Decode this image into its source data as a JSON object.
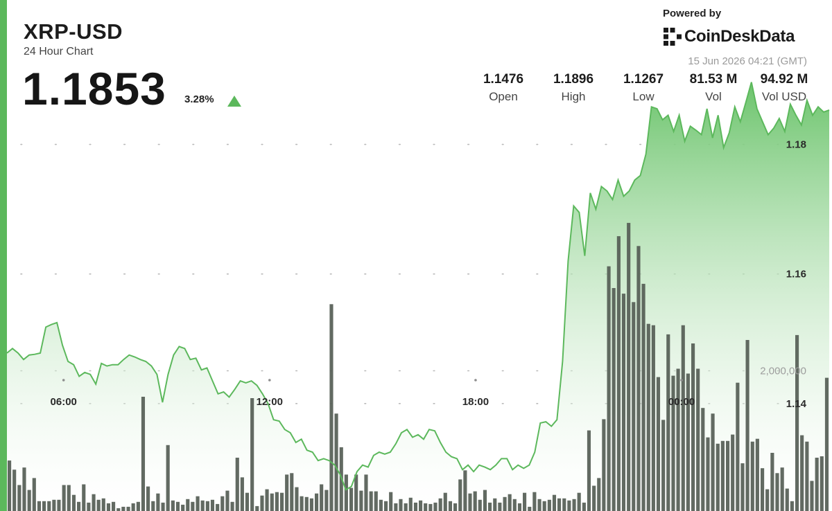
{
  "header": {
    "title": "XRP-USD",
    "subtitle": "24 Hour Chart",
    "price": "1.1853",
    "change_pct": "3.28%",
    "change_direction": "up"
  },
  "branding": {
    "powered_by": "Powered by",
    "logo_text": "CoinDeskData",
    "timestamp": "15 Jun 2026 04:21 (GMT)",
    "logo_icon": "coindesk-mark-icon"
  },
  "stats": [
    {
      "value": "1.1476",
      "label": "Open"
    },
    {
      "value": "1.1896",
      "label": "High"
    },
    {
      "value": "1.1267",
      "label": "Low"
    },
    {
      "value": "81.53 M",
      "label": "Vol"
    },
    {
      "value": "94.92 M",
      "label": "Vol USD"
    }
  ],
  "colors": {
    "accent": "#5cb85c",
    "line": "#5cb85c",
    "area_top": "#6cc46c",
    "volume_bars": "#555d55"
  },
  "chart_data": {
    "type": "area",
    "x_tick_labels": [
      "06:00",
      "12:00",
      "18:00",
      "00:00"
    ],
    "x_tick_hours": [
      6,
      12,
      18,
      24
    ],
    "x_range_hours": [
      4.35,
      28.3
    ],
    "price_axis": {
      "ticks": [
        1.14,
        1.16,
        1.18
      ],
      "labels": [
        "1.14",
        "1.16",
        "1.18"
      ],
      "range": [
        1.12,
        1.1916
      ]
    },
    "volume_axis": {
      "ticks": [
        2000000
      ],
      "labels": [
        "2,000,000"
      ],
      "range": [
        0,
        4000000
      ]
    },
    "grid": "dotted-horizontal",
    "price": [
      1.1478,
      1.1485,
      1.1478,
      1.1468,
      1.1475,
      1.1476,
      1.1478,
      1.1518,
      1.1522,
      1.1525,
      1.149,
      1.1465,
      1.146,
      1.1442,
      1.1448,
      1.1445,
      1.143,
      1.1462,
      1.1458,
      1.146,
      1.146,
      1.1468,
      1.1475,
      1.1472,
      1.1468,
      1.1465,
      1.1458,
      1.1445,
      1.1402,
      1.1445,
      1.1475,
      1.1488,
      1.1485,
      1.1468,
      1.147,
      1.1452,
      1.1455,
      1.1435,
      1.1415,
      1.1418,
      1.141,
      1.1422,
      1.1435,
      1.1432,
      1.1435,
      1.1428,
      1.1415,
      1.14,
      1.1375,
      1.1373,
      1.136,
      1.1355,
      1.134,
      1.1345,
      1.1328,
      1.1325,
      1.1312,
      1.1315,
      1.1312,
      1.1305,
      1.129,
      1.1267,
      1.1272,
      1.1295,
      1.1305,
      1.1302,
      1.132,
      1.1325,
      1.1322,
      1.1325,
      1.1338,
      1.1355,
      1.136,
      1.1348,
      1.1352,
      1.1345,
      1.136,
      1.1358,
      1.134,
      1.1325,
      1.1318,
      1.1315,
      1.1298,
      1.1305,
      1.1295,
      1.1305,
      1.1302,
      1.1298,
      1.1305,
      1.1315,
      1.1315,
      1.1298,
      1.1305,
      1.13,
      1.1305,
      1.1325,
      1.137,
      1.1372,
      1.1365,
      1.1375,
      1.1465,
      1.162,
      1.1705,
      1.1695,
      1.1628,
      1.1725,
      1.17,
      1.1735,
      1.1728,
      1.1715,
      1.1745,
      1.172,
      1.1728,
      1.1745,
      1.1752,
      1.1785,
      1.1858,
      1.1855,
      1.1838,
      1.1845,
      1.182,
      1.1845,
      1.1805,
      1.1828,
      1.1822,
      1.1815,
      1.1855,
      1.181,
      1.1845,
      1.1795,
      1.1818,
      1.1858,
      1.1835,
      1.1865,
      1.1896,
      1.1855,
      1.1835,
      1.1815,
      1.1825,
      1.184,
      1.182,
      1.1862,
      1.1845,
      1.183,
      1.1868,
      1.1845,
      1.1858,
      1.185,
      1.1853
    ],
    "volume": [
      720000,
      590000,
      370000,
      620000,
      300000,
      470000,
      140000,
      140000,
      140000,
      160000,
      160000,
      370000,
      370000,
      230000,
      130000,
      380000,
      120000,
      240000,
      160000,
      180000,
      110000,
      130000,
      40000,
      60000,
      60000,
      110000,
      130000,
      1630000,
      350000,
      140000,
      250000,
      120000,
      940000,
      150000,
      130000,
      90000,
      170000,
      130000,
      210000,
      150000,
      140000,
      160000,
      100000,
      210000,
      290000,
      130000,
      760000,
      480000,
      260000,
      1610000,
      70000,
      220000,
      310000,
      250000,
      270000,
      260000,
      520000,
      540000,
      340000,
      210000,
      200000,
      180000,
      250000,
      380000,
      300000,
      2950000,
      1390000,
      910000,
      520000,
      330000,
      520000,
      290000,
      520000,
      280000,
      280000,
      160000,
      140000,
      270000,
      110000,
      170000,
      110000,
      190000,
      120000,
      150000,
      110000,
      100000,
      120000,
      180000,
      260000,
      140000,
      110000,
      450000,
      580000,
      250000,
      280000,
      160000,
      300000,
      120000,
      180000,
      120000,
      200000,
      240000,
      170000,
      110000,
      260000,
      60000,
      270000,
      170000,
      140000,
      160000,
      230000,
      180000,
      180000,
      150000,
      170000,
      260000,
      120000,
      1150000,
      360000,
      470000,
      1310000,
      3490000,
      3180000,
      3920000,
      3100000,
      4110000,
      2980000,
      3780000,
      3240000,
      2670000,
      2650000,
      1910000,
      1300000,
      2520000,
      1930000,
      2030000,
      2650000,
      1960000,
      2390000,
      2030000,
      1470000,
      1050000,
      1390000,
      960000,
      1000000,
      1000000,
      1090000,
      1830000,
      680000,
      2440000,
      990000,
      1030000,
      610000,
      310000,
      830000,
      540000,
      620000,
      320000,
      140000,
      2510000,
      1080000,
      990000,
      430000,
      760000,
      780000,
      1900000
    ]
  }
}
